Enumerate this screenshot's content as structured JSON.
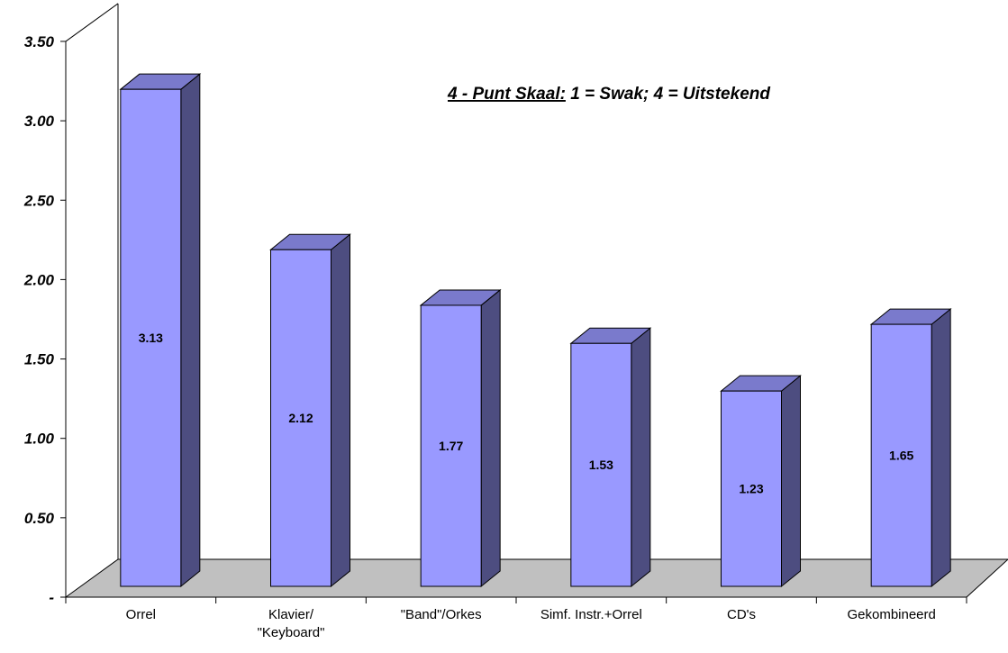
{
  "chart_data": {
    "type": "bar",
    "categories": [
      "Orrel",
      "Klavier/\n\"Keyboard\"",
      "\"Band\"/Orkes",
      "Simf. Instr.+Orrel",
      "CD's",
      "Gekombineerd"
    ],
    "values": [
      3.13,
      2.12,
      1.77,
      1.53,
      1.23,
      1.65
    ],
    "data_labels": [
      "3.13",
      "2.12",
      "1.77",
      "1.53",
      "1.23",
      "1.65"
    ],
    "y_ticks": [
      {
        "value": 0,
        "label": "-"
      },
      {
        "value": 0.5,
        "label": "0.50"
      },
      {
        "value": 1.0,
        "label": "1.00"
      },
      {
        "value": 1.5,
        "label": "1.50"
      },
      {
        "value": 2.0,
        "label": "2.00"
      },
      {
        "value": 2.5,
        "label": "2.50"
      },
      {
        "value": 3.0,
        "label": "3.00"
      },
      {
        "value": 3.5,
        "label": "3.50"
      }
    ],
    "ylim": [
      0,
      3.5
    ],
    "grid": false,
    "annotation": {
      "underlined": "4 - Punt Skaal:",
      "rest": " 1 = Swak; 4 = Uitstekend"
    },
    "colors": {
      "bar_front": "#9999ff",
      "bar_side": "#4d4d80",
      "bar_top": "#7a7acc",
      "floor": "#c0c0c0"
    }
  }
}
